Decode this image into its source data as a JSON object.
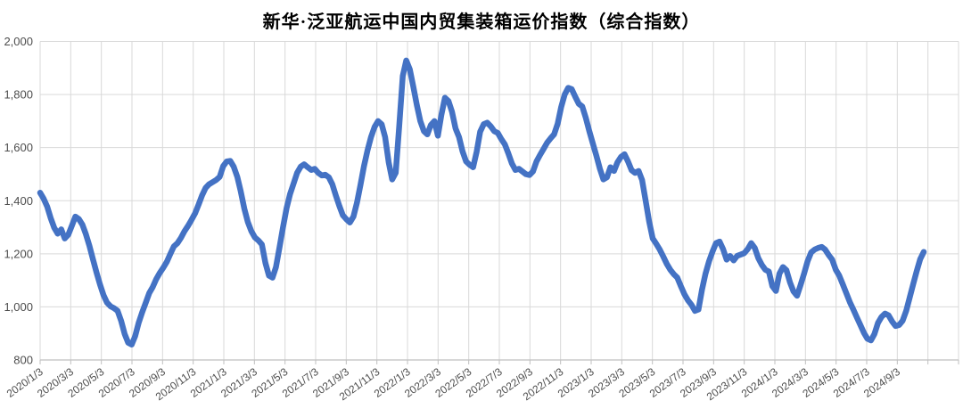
{
  "title": "新华·泛亚航运中国内贸集装箱运价指数（综合指数）",
  "chart_data": {
    "type": "line",
    "title": "新华·泛亚航运中国内贸集装箱运价指数（综合指数）",
    "series_name": "综合指数",
    "x_start_date": "2020/1/3",
    "x_interval": "weekly",
    "x_tick_labels": [
      "2020/1/3",
      "2020/3/3",
      "2020/5/3",
      "2020/7/3",
      "2020/9/3",
      "2020/11/3",
      "2021/1/3",
      "2021/3/3",
      "2021/5/3",
      "2021/7/3",
      "2021/9/3",
      "2021/11/3",
      "2022/1/3",
      "2022/3/3",
      "2022/5/3",
      "2022/7/3",
      "2022/9/3",
      "2022/11/3",
      "2023/1/3",
      "2023/3/3",
      "2023/5/3",
      "2023/7/3",
      "2023/9/3",
      "2023/11/3",
      "2024/1/3",
      "2024/3/3",
      "2024/5/3",
      "2024/7/3",
      "2024/9/3"
    ],
    "y_ticks": [
      800,
      1000,
      1200,
      1400,
      1600,
      1800,
      2000
    ],
    "y_tick_labels": [
      "800",
      "1,000",
      "1,200",
      "1,400",
      "1,600",
      "1,800",
      "2,000"
    ],
    "ylim": [
      800,
      2000
    ],
    "grid": true,
    "legend": "none",
    "line_color": "#4472C4",
    "grid_color": "#D9D9D9",
    "axis_color": "#BFBFBF",
    "label_color": "#4d4d4d",
    "values": [
      1430,
      1408,
      1378,
      1335,
      1298,
      1276,
      1292,
      1258,
      1272,
      1305,
      1340,
      1331,
      1310,
      1274,
      1230,
      1180,
      1130,
      1085,
      1044,
      1016,
      1002,
      995,
      985,
      948,
      898,
      865,
      858,
      890,
      940,
      980,
      1015,
      1052,
      1075,
      1105,
      1128,
      1148,
      1170,
      1200,
      1228,
      1240,
      1260,
      1285,
      1305,
      1328,
      1352,
      1385,
      1420,
      1448,
      1462,
      1470,
      1478,
      1490,
      1530,
      1548,
      1550,
      1528,
      1490,
      1435,
      1370,
      1320,
      1285,
      1262,
      1250,
      1235,
      1165,
      1118,
      1110,
      1150,
      1225,
      1300,
      1372,
      1425,
      1465,
      1505,
      1528,
      1537,
      1526,
      1516,
      1520,
      1505,
      1495,
      1498,
      1488,
      1462,
      1420,
      1380,
      1345,
      1330,
      1318,
      1340,
      1392,
      1460,
      1530,
      1590,
      1640,
      1678,
      1700,
      1688,
      1640,
      1545,
      1480,
      1505,
      1680,
      1870,
      1928,
      1895,
      1830,
      1760,
      1700,
      1662,
      1650,
      1685,
      1700,
      1645,
      1725,
      1788,
      1775,
      1735,
      1672,
      1640,
      1585,
      1548,
      1535,
      1526,
      1585,
      1660,
      1688,
      1694,
      1680,
      1662,
      1655,
      1632,
      1612,
      1578,
      1540,
      1516,
      1520,
      1510,
      1500,
      1497,
      1510,
      1548,
      1572,
      1595,
      1618,
      1635,
      1650,
      1690,
      1752,
      1800,
      1825,
      1820,
      1792,
      1765,
      1755,
      1712,
      1662,
      1615,
      1570,
      1520,
      1480,
      1488,
      1526,
      1512,
      1545,
      1565,
      1575,
      1548,
      1515,
      1505,
      1512,
      1478,
      1400,
      1322,
      1258,
      1238,
      1216,
      1190,
      1162,
      1140,
      1123,
      1110,
      1078,
      1048,
      1025,
      1008,
      985,
      990,
      1065,
      1125,
      1172,
      1208,
      1240,
      1246,
      1218,
      1178,
      1192,
      1175,
      1192,
      1197,
      1202,
      1218,
      1240,
      1222,
      1184,
      1158,
      1140,
      1133,
      1078,
      1060,
      1125,
      1150,
      1138,
      1092,
      1058,
      1042,
      1082,
      1126,
      1172,
      1205,
      1216,
      1222,
      1226,
      1216,
      1195,
      1178,
      1140,
      1118,
      1085,
      1052,
      1018,
      990,
      960,
      932,
      902,
      880,
      874,
      898,
      940,
      962,
      975,
      968,
      945,
      928,
      932,
      948,
      985,
      1035,
      1085,
      1135,
      1180,
      1207
    ]
  }
}
